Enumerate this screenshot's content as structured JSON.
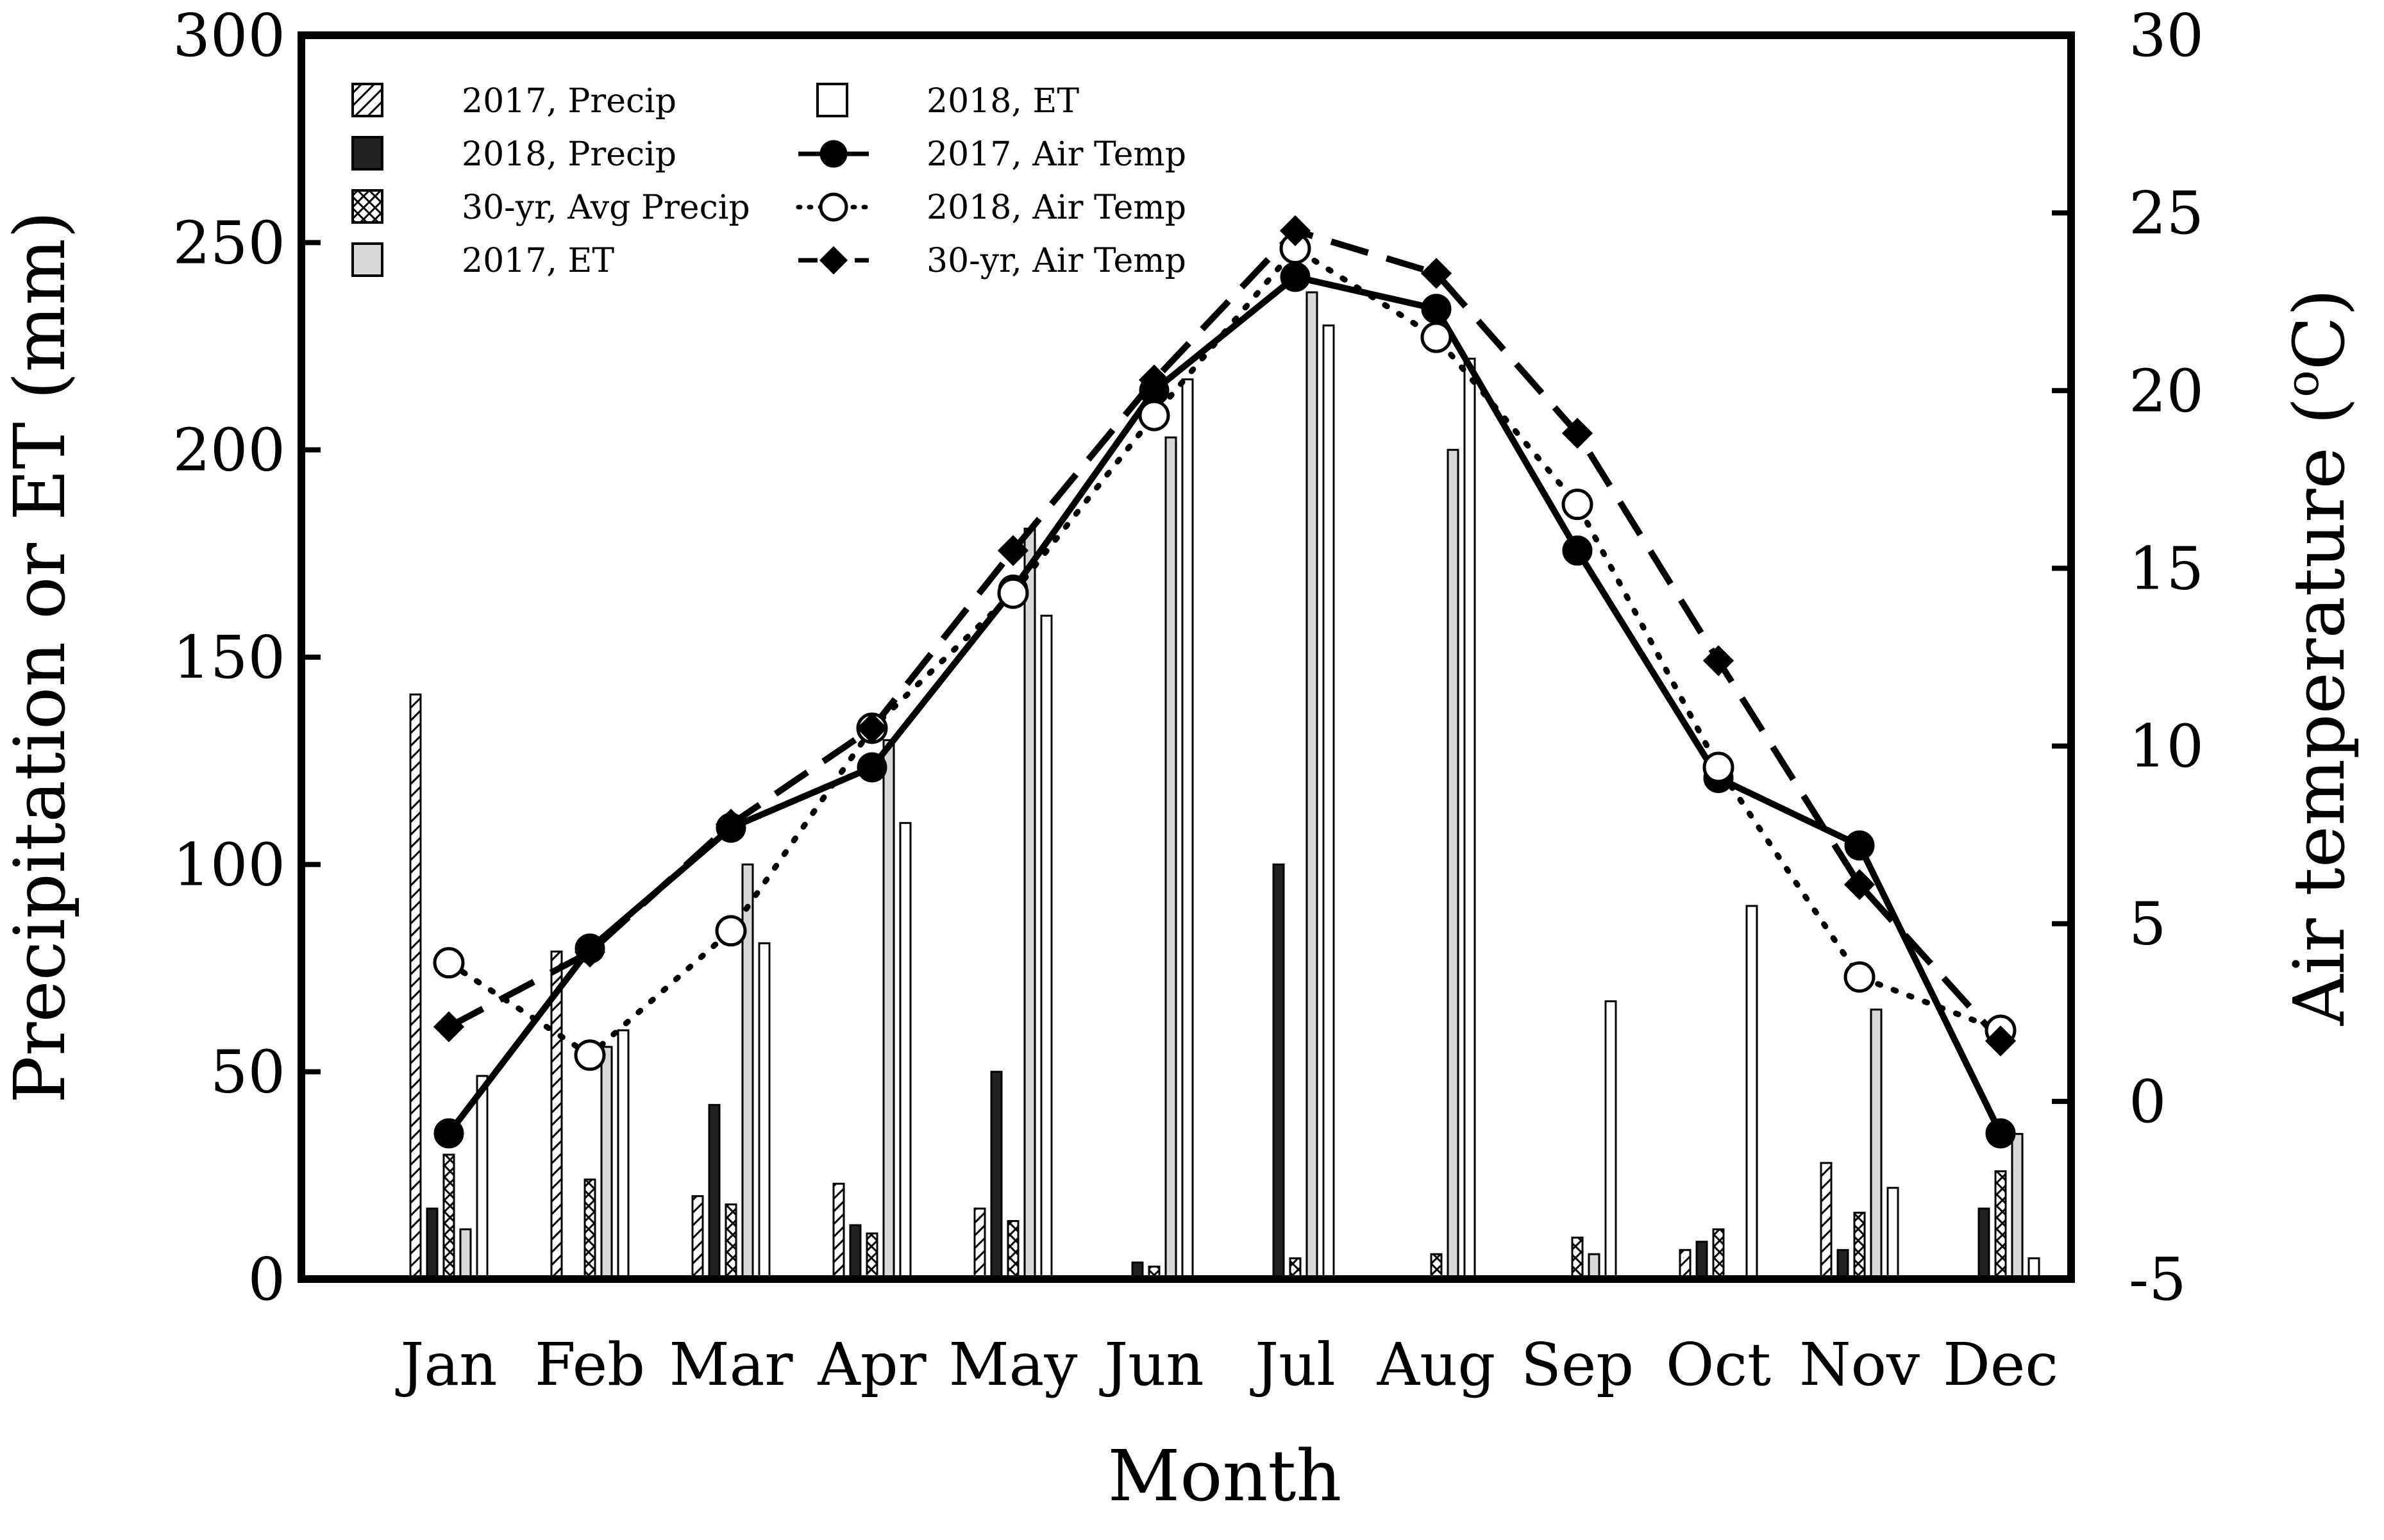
{
  "chart_data": {
    "type": "bar",
    "title": "",
    "xlabel": "Month",
    "ylabel": "Precipitation or ET (mm)",
    "y2label": "Air temperature (°C)",
    "y2label_main": "Air temperature (",
    "y2label_unit": "o",
    "y2label_unit_tail": "C)",
    "y2label_close": ")",
    "ylim": [
      0,
      300
    ],
    "y2lim": [
      -5,
      30
    ],
    "yticks": [
      "0",
      "50",
      "100",
      "150",
      "200",
      "250",
      "300"
    ],
    "y2ticks": [
      "-5",
      "0",
      "5",
      "10",
      "15",
      "20",
      "25",
      "30"
    ],
    "categories": [
      "Jan",
      "Feb",
      "Mar",
      "Apr",
      "May",
      "Jun",
      "Jul",
      "Aug",
      "Sep",
      "Oct",
      "Nov",
      "Dec"
    ],
    "legend_position": "top-left",
    "series": [
      {
        "name": "2017, Precip",
        "kind": "bar",
        "axis": "left",
        "fill": "hatch-diag",
        "values": [
          141,
          79,
          20,
          23,
          17,
          0,
          0,
          0,
          0,
          7,
          28,
          0
        ]
      },
      {
        "name": "2018, Precip",
        "kind": "bar",
        "axis": "left",
        "fill": "#222222",
        "values": [
          17,
          0,
          42,
          13,
          50,
          4,
          100,
          0,
          0,
          9,
          7,
          17
        ]
      },
      {
        "name": "30-yr, Avg Precip",
        "kind": "bar",
        "axis": "left",
        "fill": "hatch-cross",
        "values": [
          30,
          24,
          18,
          11,
          14,
          3,
          5,
          6,
          10,
          12,
          16,
          26
        ]
      },
      {
        "name": "2017, ET",
        "kind": "bar",
        "axis": "left",
        "fill": "#d8d8d8",
        "values": [
          12,
          56,
          100,
          130,
          181,
          203,
          238,
          200,
          6,
          0,
          65,
          35
        ]
      },
      {
        "name": "2018, ET",
        "kind": "bar",
        "axis": "left",
        "fill": "#ffffff",
        "values": [
          49,
          60,
          81,
          110,
          160,
          217,
          230,
          222,
          67,
          90,
          22,
          5
        ]
      },
      {
        "name": "2017, Air Temp",
        "kind": "line",
        "axis": "right",
        "line": "solid",
        "marker": "filled-circle",
        "values": [
          -0.9,
          4.3,
          7.7,
          9.4,
          14.4,
          20,
          23.2,
          22.3,
          15.5,
          9.1,
          7.2,
          -0.9
        ]
      },
      {
        "name": "2018, Air Temp",
        "kind": "line",
        "axis": "right",
        "line": "dotted",
        "marker": "open-circle",
        "values": [
          3.9,
          1.3,
          4.8,
          10.5,
          14.3,
          19.3,
          24,
          21.5,
          16.8,
          9.4,
          3.5,
          2.0
        ]
      },
      {
        "name": "30-yr, Air Temp",
        "kind": "line",
        "axis": "right",
        "line": "dashed",
        "marker": "filled-diamond",
        "values": [
          2.1,
          4.2,
          7.8,
          10.5,
          15.5,
          20.3,
          24.5,
          23.3,
          18.8,
          12.4,
          6.1,
          1.7
        ]
      }
    ]
  }
}
